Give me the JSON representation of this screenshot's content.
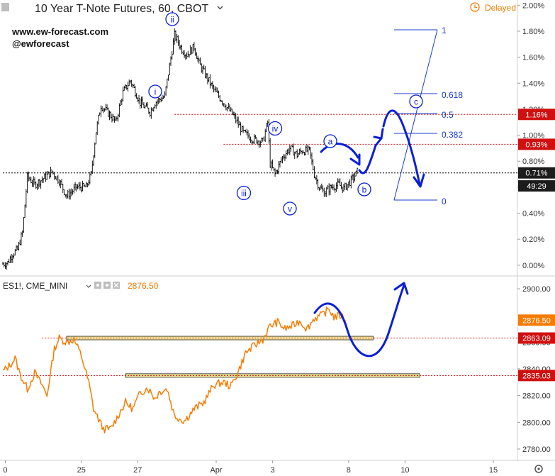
{
  "header": {
    "title": "10 Year T-Note Futures, 60, CBOT",
    "delayed_label": "Delayed",
    "watermark_url": "www.ew-forecast.com",
    "watermark_handle": "@ewforecast"
  },
  "lower_header": {
    "symbol": "ES1!, CME_MINI",
    "price": "2876.50"
  },
  "colors": {
    "upper_bars": "#000000",
    "es_line": "#f57c00",
    "wave_blue": "#0a1fd6",
    "fib_blue": "#1a3bd1",
    "red_level": "#d01010",
    "yellow_zone": "#f5e69a",
    "axis_text": "#333333",
    "delayed": "#f57c00",
    "price_dark_tag": "#1c1c1c"
  },
  "chart_data": [
    {
      "type": "line",
      "title": "10 Year T-Note Futures, 60, CBOT",
      "y_axis_side": "right",
      "ylim": [
        -0.05,
        2.04
      ],
      "y_ticks": [
        "2.00%",
        "1.80%",
        "1.60%",
        "1.40%",
        "1.20%",
        "1.00%",
        "0.80%",
        "0.60%",
        "0.40%",
        "0.20%",
        "0.00%"
      ],
      "price_tags": [
        {
          "label": "1.16%",
          "value": 1.16,
          "style": "red"
        },
        {
          "label": "0.93%",
          "value": 0.93,
          "style": "red"
        },
        {
          "label": "0.71%",
          "value": 0.71,
          "style": "dark"
        },
        {
          "label": "49:29",
          "value": 0.61,
          "style": "dark"
        }
      ],
      "horizontal_levels": [
        {
          "value": 1.16,
          "start_day": 3.5,
          "style": "red-dotted"
        },
        {
          "value": 0.93,
          "start_day": 4.5,
          "style": "red-dotted"
        },
        {
          "value": 0.71,
          "start_day": 0,
          "style": "black-dotted"
        }
      ],
      "series": [
        {
          "points": [
            {
              "day": 0.0,
              "value": 0.01
            },
            {
              "day": 0.1,
              "value": 0.02
            },
            {
              "day": 0.2,
              "value": 0.09
            },
            {
              "day": 0.3,
              "value": 0.12
            },
            {
              "day": 0.4,
              "value": 0.25
            },
            {
              "day": 0.5,
              "value": 0.68
            },
            {
              "day": 0.65,
              "value": 0.62
            },
            {
              "day": 0.8,
              "value": 0.66
            },
            {
              "day": 1.0,
              "value": 0.72
            },
            {
              "day": 1.15,
              "value": 0.65
            },
            {
              "day": 1.3,
              "value": 0.53
            },
            {
              "day": 1.5,
              "value": 0.6
            },
            {
              "day": 1.7,
              "value": 0.6
            },
            {
              "day": 1.8,
              "value": 0.7
            },
            {
              "day": 1.9,
              "value": 1.03
            },
            {
              "day": 2.0,
              "value": 1.23
            },
            {
              "day": 2.2,
              "value": 1.15
            },
            {
              "day": 2.3,
              "value": 1.1
            },
            {
              "day": 2.45,
              "value": 1.33
            },
            {
              "day": 2.6,
              "value": 1.42
            },
            {
              "day": 2.8,
              "value": 1.25
            },
            {
              "day": 3.0,
              "value": 1.18
            },
            {
              "day": 3.1,
              "value": 1.25
            },
            {
              "day": 3.3,
              "value": 1.3
            },
            {
              "day": 3.5,
              "value": 1.77
            },
            {
              "day": 3.65,
              "value": 1.66
            },
            {
              "day": 3.75,
              "value": 1.62
            },
            {
              "day": 3.9,
              "value": 1.68
            },
            {
              "day": 4.0,
              "value": 1.55
            },
            {
              "day": 4.15,
              "value": 1.45
            },
            {
              "day": 4.3,
              "value": 1.35
            },
            {
              "day": 4.5,
              "value": 1.25
            },
            {
              "day": 4.7,
              "value": 1.15
            },
            {
              "day": 4.9,
              "value": 1.02
            },
            {
              "day": 5.1,
              "value": 0.97
            },
            {
              "day": 5.3,
              "value": 0.95
            },
            {
              "day": 5.4,
              "value": 1.1
            },
            {
              "day": 5.45,
              "value": 0.78
            },
            {
              "day": 5.55,
              "value": 0.7
            },
            {
              "day": 5.7,
              "value": 0.83
            },
            {
              "day": 5.85,
              "value": 0.9
            },
            {
              "day": 6.0,
              "value": 0.85
            },
            {
              "day": 6.1,
              "value": 0.88
            },
            {
              "day": 6.25,
              "value": 0.88
            },
            {
              "day": 6.35,
              "value": 0.7
            },
            {
              "day": 6.45,
              "value": 0.6
            },
            {
              "day": 6.55,
              "value": 0.56
            },
            {
              "day": 6.7,
              "value": 0.6
            },
            {
              "day": 6.85,
              "value": 0.62
            },
            {
              "day": 6.95,
              "value": 0.59
            },
            {
              "day": 7.1,
              "value": 0.65
            },
            {
              "day": 7.25,
              "value": 0.73
            }
          ]
        }
      ],
      "wave_labels": [
        "i",
        "ii",
        "iii",
        "iv",
        "v",
        "a",
        "b",
        "c"
      ],
      "fib_levels": [
        {
          "label": "1",
          "value": 1.8
        },
        {
          "label": "0.618",
          "value": 1.31
        },
        {
          "label": "0.5",
          "value": 1.15
        },
        {
          "label": "0.382",
          "value": 0.99
        },
        {
          "label": "0",
          "value": 0.5
        }
      ]
    },
    {
      "type": "line",
      "title": "ES1!, CME_MINI",
      "y_axis_side": "right",
      "ylim": [
        2772,
        2908
      ],
      "y_ticks": [
        "2900.00",
        "2860.00",
        "2840.00",
        "2820.00",
        "2800.00",
        "2780.00"
      ],
      "price_tags": [
        {
          "label": "2876.50",
          "value": 2876.5,
          "style": "orange"
        },
        {
          "label": "2863.09",
          "value": 2863.09,
          "style": "red"
        },
        {
          "label": "2835.03",
          "value": 2835.03,
          "style": "red"
        }
      ],
      "horizontal_levels": [
        {
          "value": 2863.09,
          "start_day": 0.8,
          "style": "red-dotted"
        },
        {
          "value": 2835.03,
          "start_day": 0,
          "style": "red-dotted"
        }
      ],
      "zones": [
        {
          "value": 2863.09,
          "start_day": 1.3,
          "end_day": 7.55
        },
        {
          "value": 2835.03,
          "start_day": 2.5,
          "end_day": 8.5
        }
      ],
      "series": [
        {
          "points": [
            {
              "day": 0.0,
              "value": 2838
            },
            {
              "day": 0.15,
              "value": 2843
            },
            {
              "day": 0.25,
              "value": 2848
            },
            {
              "day": 0.35,
              "value": 2836
            },
            {
              "day": 0.5,
              "value": 2825
            },
            {
              "day": 0.65,
              "value": 2837
            },
            {
              "day": 0.8,
              "value": 2828
            },
            {
              "day": 0.9,
              "value": 2820
            },
            {
              "day": 1.05,
              "value": 2855
            },
            {
              "day": 1.15,
              "value": 2863
            },
            {
              "day": 1.3,
              "value": 2860
            },
            {
              "day": 1.45,
              "value": 2862
            },
            {
              "day": 1.6,
              "value": 2850
            },
            {
              "day": 1.75,
              "value": 2830
            },
            {
              "day": 1.85,
              "value": 2810
            },
            {
              "day": 2.05,
              "value": 2795
            },
            {
              "day": 2.2,
              "value": 2795
            },
            {
              "day": 2.35,
              "value": 2805
            },
            {
              "day": 2.5,
              "value": 2815
            },
            {
              "day": 2.65,
              "value": 2810
            },
            {
              "day": 2.8,
              "value": 2822
            },
            {
              "day": 2.95,
              "value": 2826
            },
            {
              "day": 3.1,
              "value": 2818
            },
            {
              "day": 3.2,
              "value": 2823
            },
            {
              "day": 3.35,
              "value": 2825
            },
            {
              "day": 3.5,
              "value": 2805
            },
            {
              "day": 3.7,
              "value": 2801
            },
            {
              "day": 3.9,
              "value": 2810
            },
            {
              "day": 4.1,
              "value": 2815
            },
            {
              "day": 4.3,
              "value": 2828
            },
            {
              "day": 4.5,
              "value": 2830
            },
            {
              "day": 4.65,
              "value": 2827
            },
            {
              "day": 4.8,
              "value": 2838
            },
            {
              "day": 4.95,
              "value": 2852
            },
            {
              "day": 5.15,
              "value": 2858
            },
            {
              "day": 5.3,
              "value": 2862
            },
            {
              "day": 5.45,
              "value": 2872
            },
            {
              "day": 5.6,
              "value": 2875
            },
            {
              "day": 5.75,
              "value": 2870
            },
            {
              "day": 5.9,
              "value": 2872
            },
            {
              "day": 6.05,
              "value": 2876
            },
            {
              "day": 6.2,
              "value": 2870
            },
            {
              "day": 6.35,
              "value": 2878
            },
            {
              "day": 6.5,
              "value": 2880
            },
            {
              "day": 6.65,
              "value": 2885
            },
            {
              "day": 6.75,
              "value": 2879
            },
            {
              "day": 6.9,
              "value": 2880
            },
            {
              "day": 7.0,
              "value": 2876
            }
          ]
        }
      ]
    }
  ],
  "x_axis": {
    "ticks": [
      {
        "label": "0",
        "day": 0.05
      },
      {
        "label": "25",
        "day": 1.6
      },
      {
        "label": "27",
        "day": 2.75
      },
      {
        "label": "Apr",
        "day": 4.35
      },
      {
        "label": "3",
        "day": 5.5
      },
      {
        "label": "8",
        "day": 7.05
      },
      {
        "label": "10",
        "day": 8.2
      },
      {
        "label": "15",
        "day": 10.0
      }
    ]
  }
}
